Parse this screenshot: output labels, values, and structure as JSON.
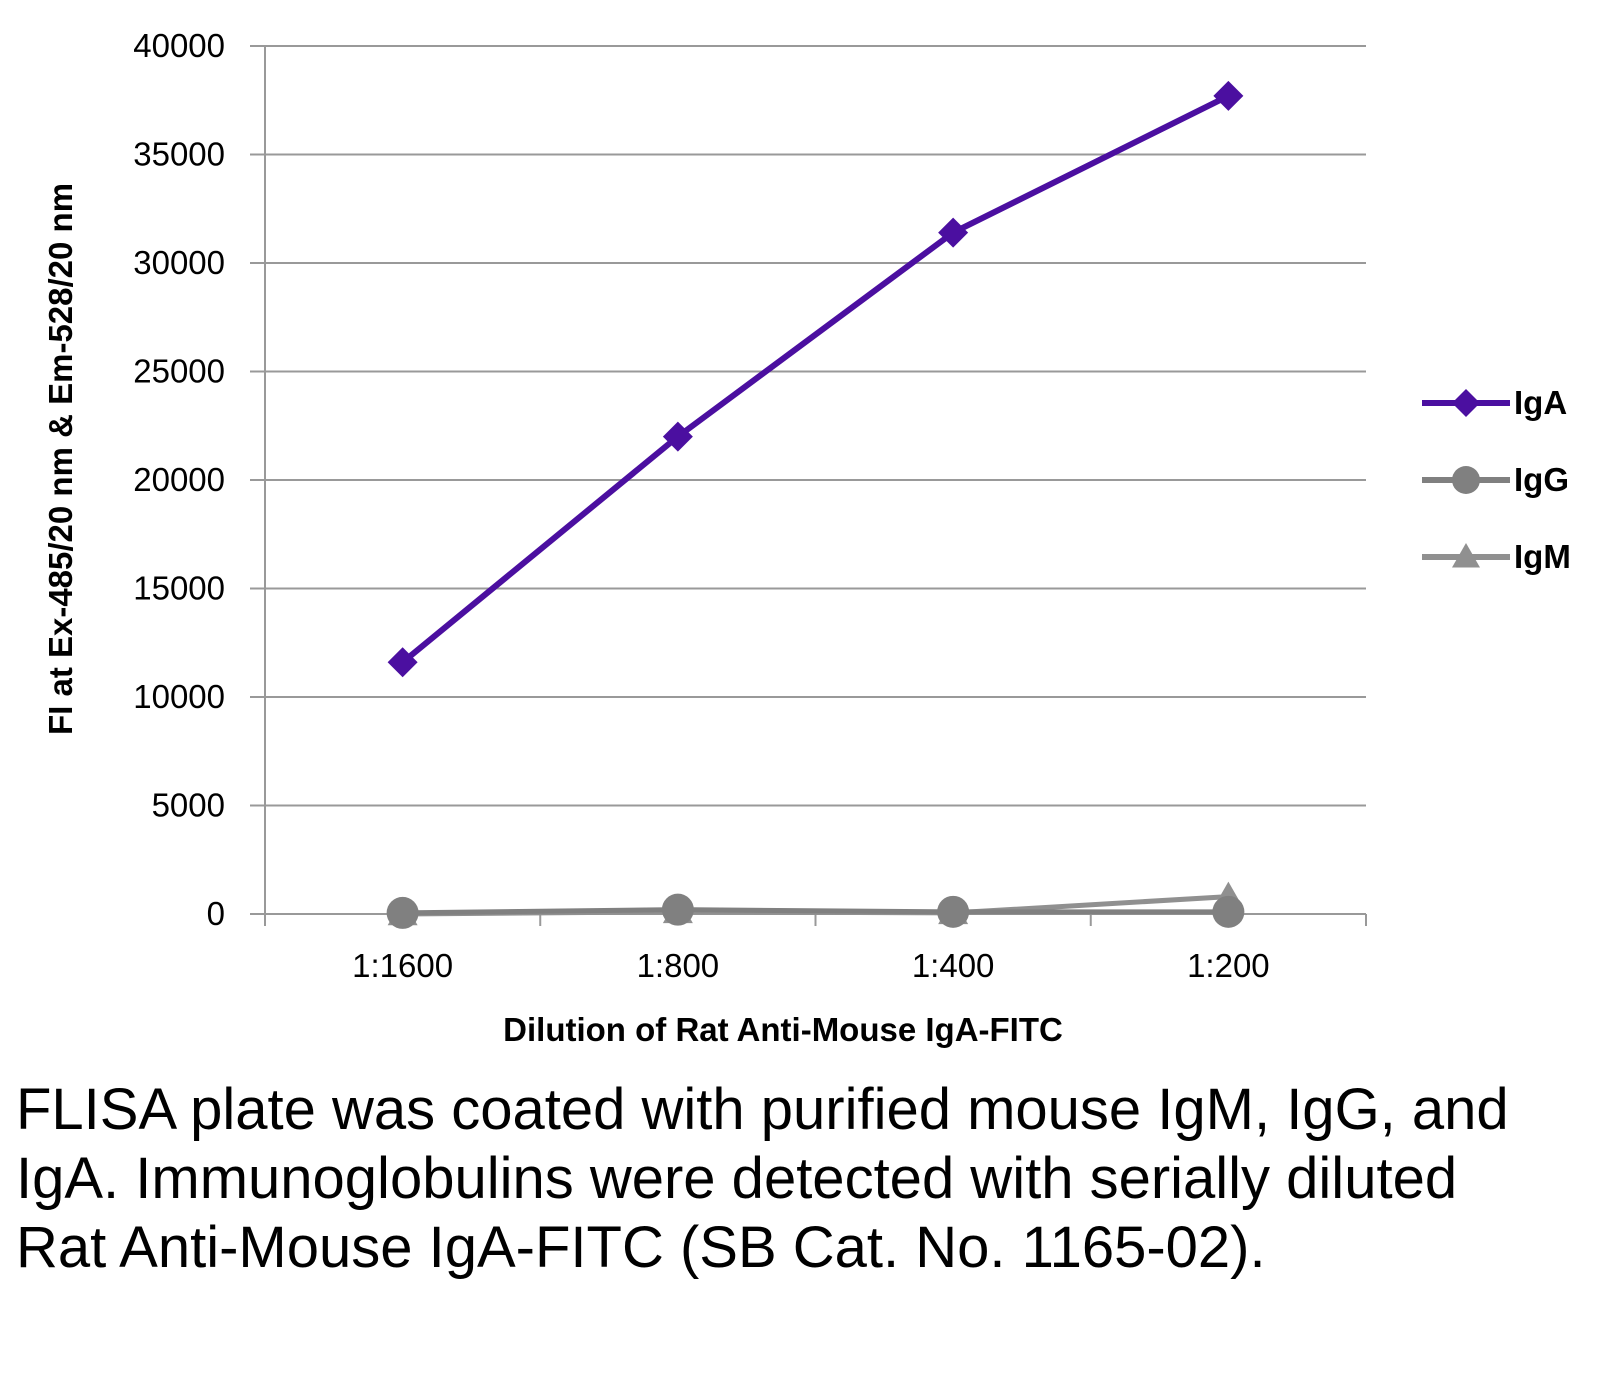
{
  "chart_data": {
    "type": "line",
    "title": "",
    "xlabel": "Dilution of Rat Anti-Mouse IgA-FITC",
    "ylabel": "FI at Ex-485/20 nm & Em-528/20 nm",
    "categories": [
      "1:1600",
      "1:800",
      "1:400",
      "1:200"
    ],
    "ylim": [
      0,
      40000
    ],
    "yticks": [
      0,
      5000,
      10000,
      15000,
      20000,
      25000,
      30000,
      35000,
      40000
    ],
    "grid": true,
    "legend_position": "right",
    "series": [
      {
        "name": "IgA",
        "marker": "diamond",
        "color": "#4B0FA0",
        "values": [
          11600,
          22000,
          31400,
          37700
        ]
      },
      {
        "name": "IgG",
        "marker": "circle",
        "color": "#808080",
        "values": [
          50,
          200,
          100,
          100
        ]
      },
      {
        "name": "IgM",
        "marker": "triangle",
        "color": "#909090",
        "values": [
          0,
          100,
          50,
          800
        ]
      }
    ]
  },
  "caption": "FLISA plate was coated with purified mouse IgM, IgG, and IgA.  Immunoglobulins were detected with serially diluted Rat Anti-Mouse IgA-FITC (SB Cat. No. 1165-02)."
}
